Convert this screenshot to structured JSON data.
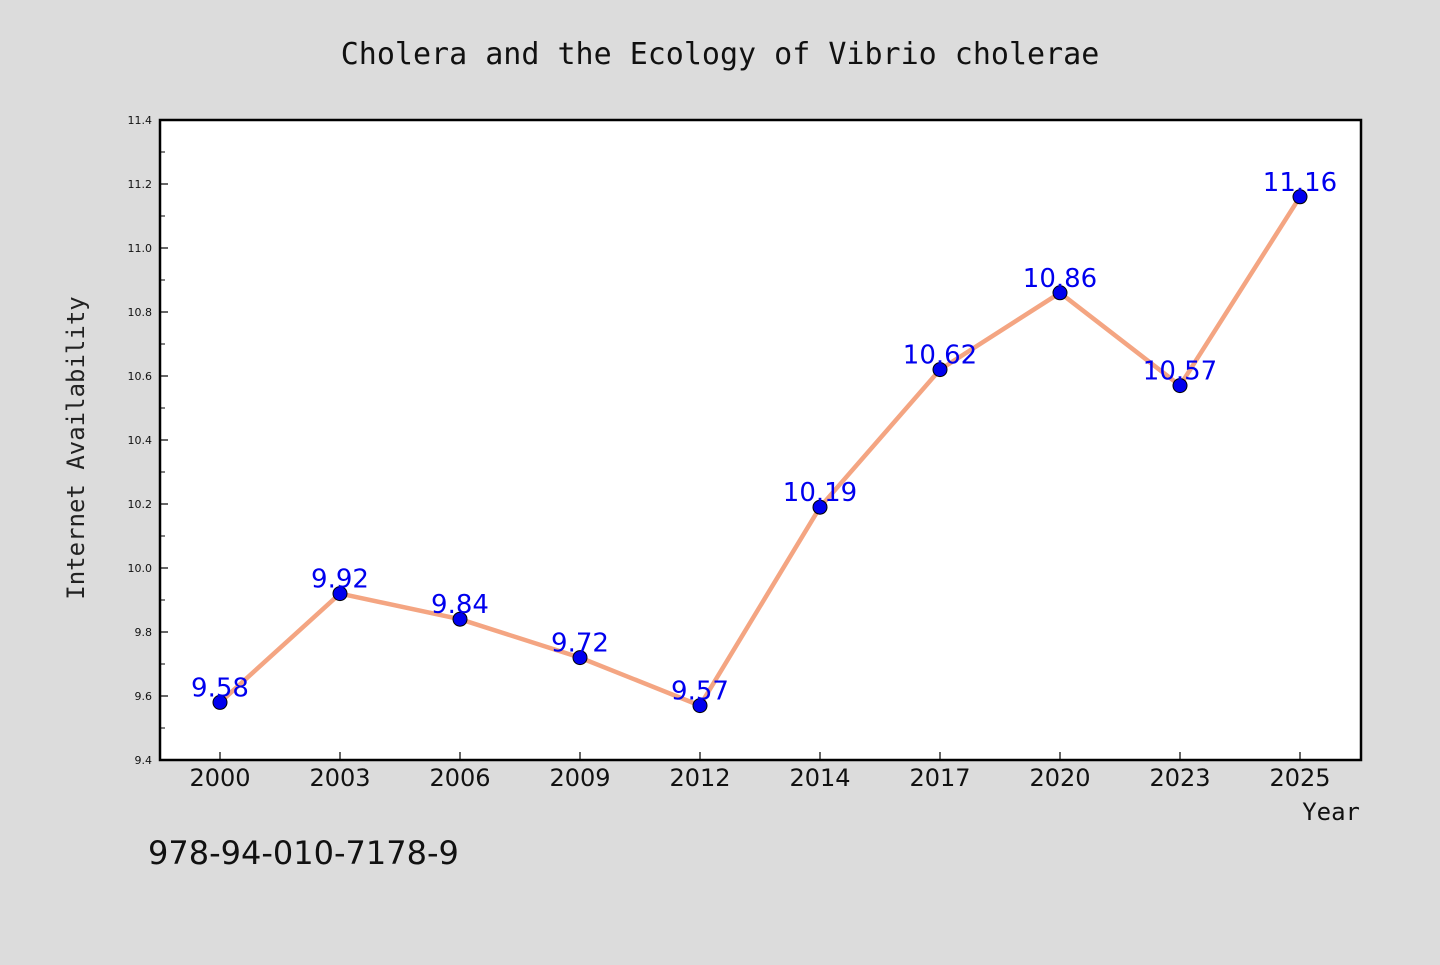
{
  "chart_data": {
    "type": "line",
    "title": "Cholera and the Ecology of Vibrio cholerae",
    "xlabel": "Year",
    "ylabel": "Internet Availability",
    "categories": [
      "2000",
      "2003",
      "2006",
      "2009",
      "2012",
      "2014",
      "2017",
      "2020",
      "2023",
      "2025"
    ],
    "series": [
      {
        "values": [
          9.58,
          9.92,
          9.84,
          9.72,
          9.57,
          10.19,
          10.62,
          10.86,
          10.57,
          11.16
        ],
        "data_labels": [
          "9.58",
          "9.92",
          "9.84",
          "9.72",
          "9.57",
          "10.19",
          "10.62",
          "10.86",
          "10.57",
          "11.16"
        ],
        "line_color": "#f4a582",
        "marker_color": "#0000ee"
      }
    ],
    "ylim": [
      9.4,
      11.4
    ],
    "yticks": [
      "9.4",
      "9.6",
      "9.8",
      "10.0",
      "10.2",
      "10.4",
      "10.6",
      "10.8",
      "11.0",
      "11.2",
      "11.4"
    ],
    "grid": false,
    "legend": "none"
  },
  "footer": {
    "isbn": "978-94-010-7178-9"
  },
  "colors": {
    "background": "#dcdcdc",
    "plot_background": "#ffffff",
    "line": "#f4a582",
    "marker": "#0000ee",
    "data_label": "#0000ee"
  }
}
